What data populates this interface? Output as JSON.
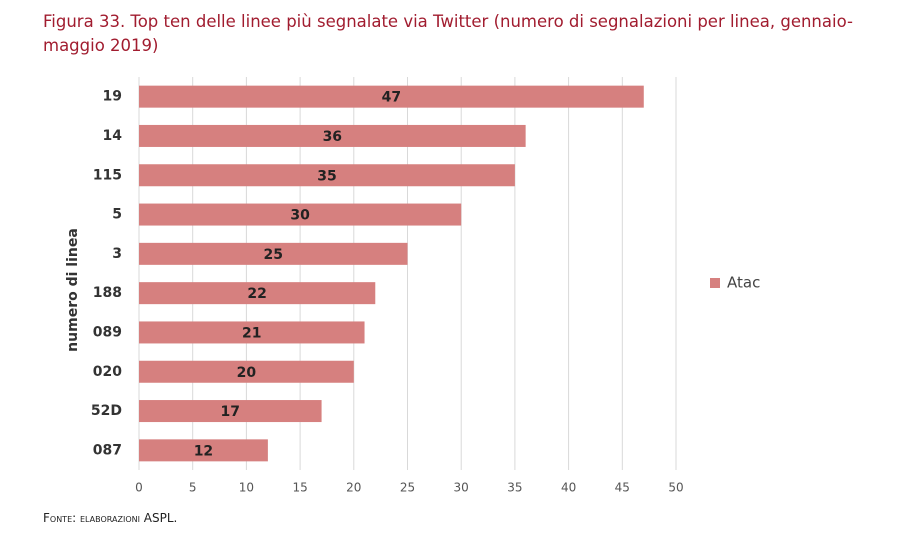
{
  "chart_data": {
    "type": "barh",
    "title": "Figura 33. Top ten delle linee più segnalate via Twitter (numero di segnalazioni per linea, gennaio-maggio 2019)",
    "ylabel": "numero di linea",
    "categories": [
      "19",
      "14",
      "115",
      "5",
      "3",
      "188",
      "089",
      "020",
      "52D",
      "087"
    ],
    "series": [
      {
        "name": "Atac",
        "color": "#d6807f",
        "values": [
          47,
          36,
          35,
          30,
          25,
          22,
          21,
          20,
          17,
          12
        ]
      }
    ],
    "xlim": [
      0,
      50
    ],
    "xticks": [
      0,
      5,
      10,
      15,
      20,
      25,
      30,
      35,
      40,
      45,
      50
    ],
    "grid": true,
    "legend": "right",
    "source": "Fonte: elaborazioni ASPL."
  }
}
